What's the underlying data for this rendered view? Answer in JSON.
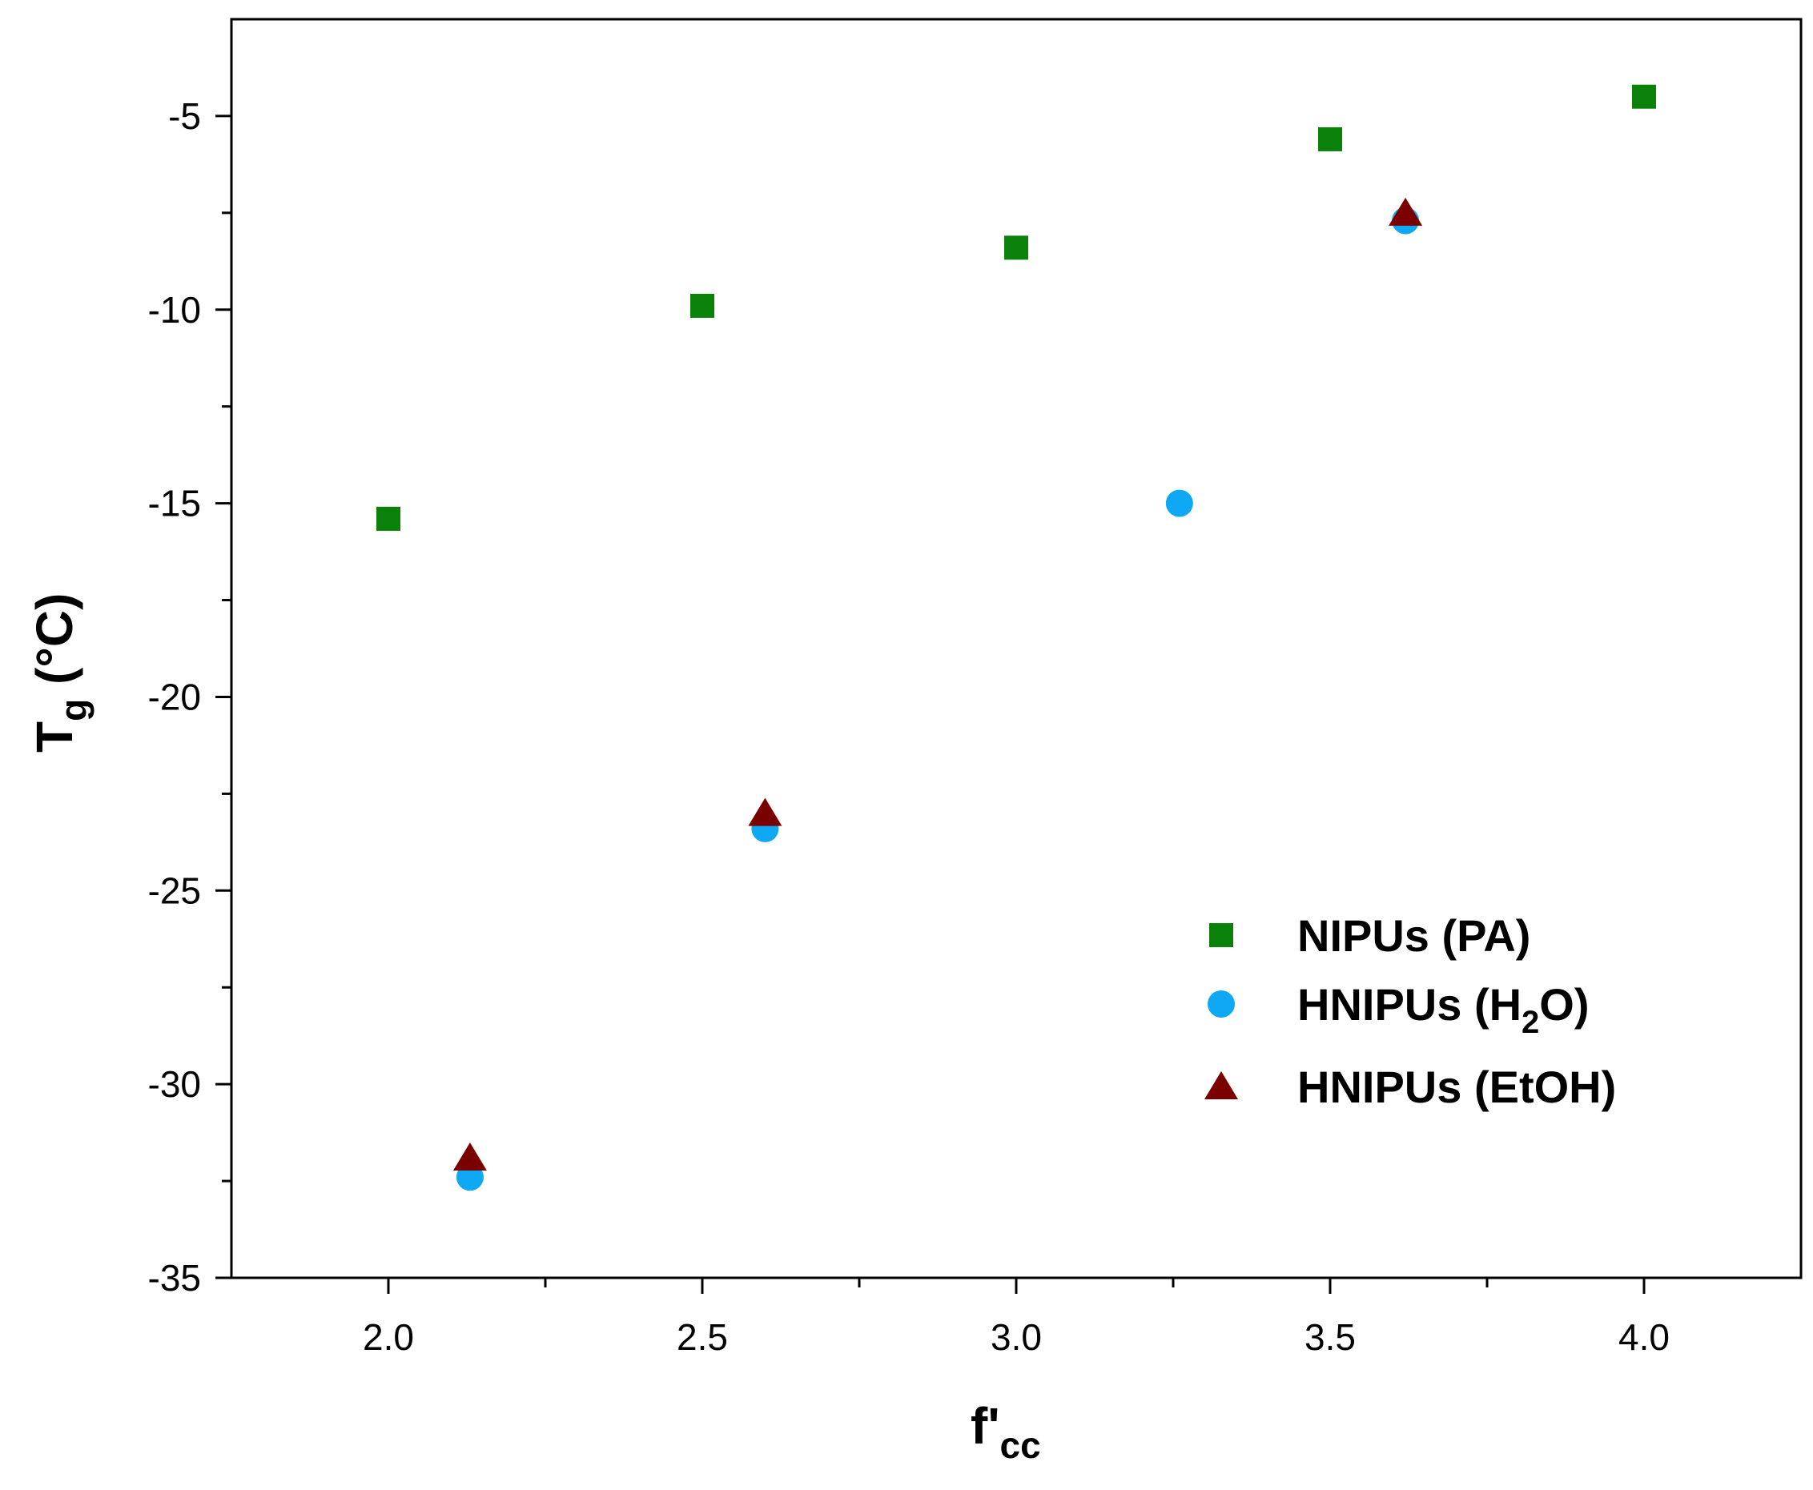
{
  "chart_data": {
    "type": "scatter",
    "title": "",
    "xlabel": {
      "main": "f'",
      "sub": "cc"
    },
    "ylabel": {
      "main": "T",
      "sub": "g",
      "rest": " (°C)"
    },
    "xlim": [
      1.75,
      4.25
    ],
    "ylim": [
      -35,
      -2.5
    ],
    "x_ticks": [
      2.0,
      2.5,
      3.0,
      3.5,
      4.0
    ],
    "x_tick_labels": [
      "2.0",
      "2.5",
      "3.0",
      "3.5",
      "4.0"
    ],
    "x_minor_ticks": [
      2.25,
      2.75,
      3.25,
      3.75
    ],
    "y_ticks": [
      -35,
      -30,
      -25,
      -20,
      -15,
      -10,
      -5
    ],
    "y_tick_labels": [
      "-35",
      "-30",
      "-25",
      "-20",
      "-15",
      "-10",
      "-5"
    ],
    "y_minor_ticks": [
      -32.5,
      -27.5,
      -22.5,
      -17.5,
      -12.5,
      -7.5
    ],
    "grid": false,
    "legend_position": "lower-right",
    "series": [
      {
        "name": "NIPUs (PA)",
        "name_parts": [
          "NIPUs (PA)"
        ],
        "marker": "square",
        "color": "#0a820a",
        "x": [
          2.0,
          2.5,
          3.0,
          3.5,
          4.0
        ],
        "y": [
          -15.4,
          -9.9,
          -8.4,
          -5.6,
          -4.5
        ]
      },
      {
        "name": "HNIPUs (H2O)",
        "name_parts": [
          "HNIPUs (H",
          "2",
          "O)"
        ],
        "marker": "circle",
        "color": "#0fa8f5",
        "x": [
          2.13,
          2.6,
          3.26,
          3.62
        ],
        "y": [
          -32.4,
          -23.4,
          -15.0,
          -7.7
        ]
      },
      {
        "name": "HNIPUs (EtOH)",
        "name_parts": [
          "HNIPUs (EtOH)"
        ],
        "marker": "triangle",
        "color": "#7a0000",
        "x": [
          2.13,
          2.6,
          3.62
        ],
        "y": [
          -31.9,
          -23.0,
          -7.5
        ]
      }
    ]
  }
}
